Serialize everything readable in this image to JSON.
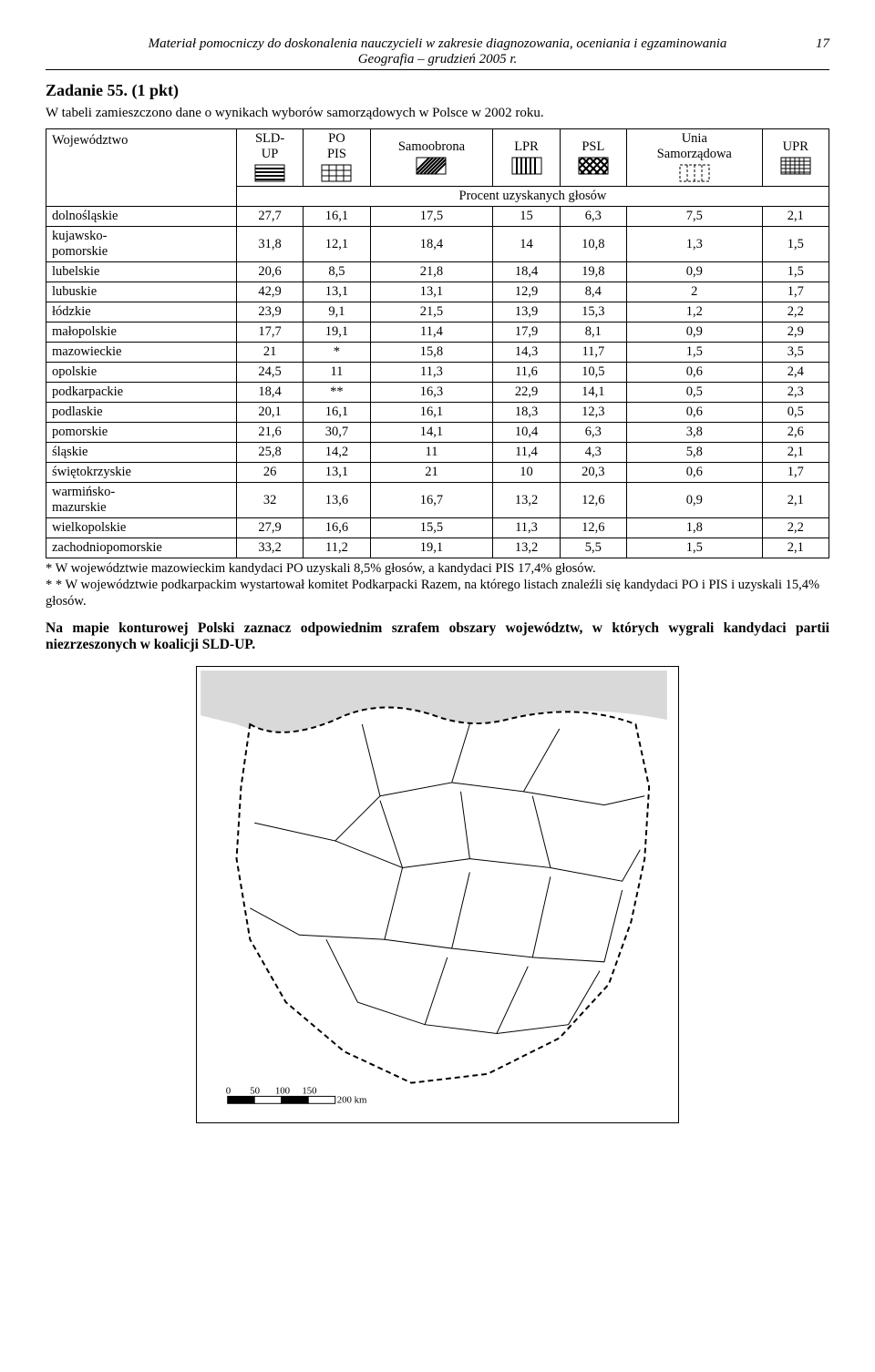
{
  "header": {
    "line1": "Materiał pomocniczy do doskonalenia nauczycieli w zakresie diagnozowania, oceniania i egzaminowania",
    "line2": "Geografia – grudzień 2005 r.",
    "page": "17"
  },
  "task": {
    "title": "Zadanie 55. (1 pkt)",
    "intro": "W tabeli zamieszczono dane o wynikach wyborów samorządowych w Polsce w 2002 roku."
  },
  "table": {
    "row_header": "Województwo",
    "columns": [
      "SLD-\nUP",
      "PO\nPIS",
      "Samoobrona",
      "LPR",
      "PSL",
      "Unia\nSamorządowa",
      "UPR"
    ],
    "subheader": "Procent uzyskanych głosów",
    "rows": [
      {
        "label": "dolnośląskie",
        "cells": [
          "27,7",
          "16,1",
          "17,5",
          "15",
          "6,3",
          "7,5",
          "2,1"
        ]
      },
      {
        "label": "kujawsko-\npomorskie",
        "cells": [
          "31,8",
          "12,1",
          "18,4",
          "14",
          "10,8",
          "1,3",
          "1,5"
        ]
      },
      {
        "label": "lubelskie",
        "cells": [
          "20,6",
          "8,5",
          "21,8",
          "18,4",
          "19,8",
          "0,9",
          "1,5"
        ]
      },
      {
        "label": "lubuskie",
        "cells": [
          "42,9",
          "13,1",
          "13,1",
          "12,9",
          "8,4",
          "2",
          "1,7"
        ]
      },
      {
        "label": "łódzkie",
        "cells": [
          "23,9",
          "9,1",
          "21,5",
          "13,9",
          "15,3",
          "1,2",
          "2,2"
        ]
      },
      {
        "label": "małopolskie",
        "cells": [
          "17,7",
          "19,1",
          "11,4",
          "17,9",
          "8,1",
          "0,9",
          "2,9"
        ]
      },
      {
        "label": "mazowieckie",
        "cells": [
          "21",
          "*",
          "15,8",
          "14,3",
          "11,7",
          "1,5",
          "3,5"
        ]
      },
      {
        "label": "opolskie",
        "cells": [
          "24,5",
          "11",
          "11,3",
          "11,6",
          "10,5",
          "0,6",
          "2,4"
        ]
      },
      {
        "label": "podkarpackie",
        "cells": [
          "18,4",
          "**",
          "16,3",
          "22,9",
          "14,1",
          "0,5",
          "2,3"
        ]
      },
      {
        "label": "podlaskie",
        "cells": [
          "20,1",
          "16,1",
          "16,1",
          "18,3",
          "12,3",
          "0,6",
          "0,5"
        ]
      },
      {
        "label": "pomorskie",
        "cells": [
          "21,6",
          "30,7",
          "14,1",
          "10,4",
          "6,3",
          "3,8",
          "2,6"
        ]
      },
      {
        "label": "śląskie",
        "cells": [
          "25,8",
          "14,2",
          "11",
          "11,4",
          "4,3",
          "5,8",
          "2,1"
        ]
      },
      {
        "label": "świętokrzyskie",
        "cells": [
          "26",
          "13,1",
          "21",
          "10",
          "20,3",
          "0,6",
          "1,7"
        ]
      },
      {
        "label": "warmińsko-\nmazurskie",
        "cells": [
          "32",
          "13,6",
          "16,7",
          "13,2",
          "12,6",
          "0,9",
          "2,1"
        ]
      },
      {
        "label": "wielkopolskie",
        "cells": [
          "27,9",
          "16,6",
          "15,5",
          "11,3",
          "12,6",
          "1,8",
          "2,2"
        ]
      },
      {
        "label": "zachodniopomorskie",
        "cells": [
          "33,2",
          "11,2",
          "19,1",
          "13,2",
          "5,5",
          "1,5",
          "2,1"
        ]
      }
    ]
  },
  "pattern_icons": {
    "svg_size": 34,
    "defs": [
      {
        "id": "p-sldup",
        "type": "hstripes"
      },
      {
        "id": "p-popis",
        "type": "grid"
      },
      {
        "id": "p-samoobrona",
        "type": "diag"
      },
      {
        "id": "p-lpr",
        "type": "vstripes"
      },
      {
        "id": "p-psl",
        "type": "diag2"
      },
      {
        "id": "p-unia",
        "type": "dashed-box"
      },
      {
        "id": "p-upr",
        "type": "crosshatch"
      }
    ]
  },
  "notes": {
    "n1": "* W województwie mazowieckim kandydaci PO uzyskali 8,5% głosów, a kandydaci PIS 17,4% głosów.",
    "n2": "* * W województwie podkarpackim wystartował komitet Podkarpacki Razem, na którego listach znaleźli się kandydaci  PO i PIS i uzyskali 15,4% głosów."
  },
  "instruction": "Na mapie konturowej Polski zaznacz odpowiednim szrafem obszary województw, w których wygrali kandydaci partii niezrzeszonych w koalicji SLD-UP.",
  "map": {
    "scale_labels": [
      "0",
      "50",
      "100",
      "150",
      "200 km"
    ]
  },
  "colors": {
    "line": "#000000",
    "bg": "#ffffff",
    "sea": "#d9d9d9"
  }
}
